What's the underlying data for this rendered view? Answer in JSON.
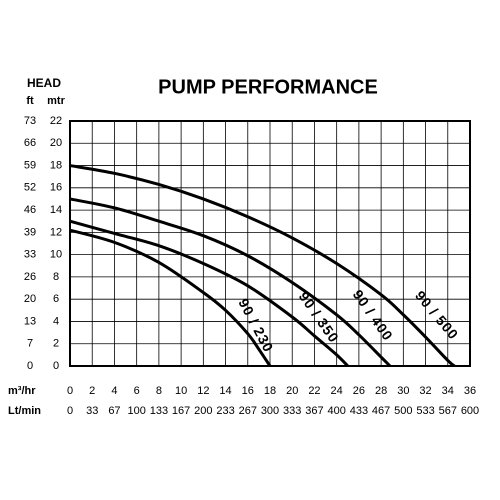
{
  "chart_data": {
    "type": "line",
    "title": "PUMP PERFORMANCE",
    "y_title": "HEAD",
    "y_unit": "mtr",
    "y2_unit": "ft",
    "x_unit": "m³/hr",
    "x2_unit": "Lt/min",
    "xlim": [
      0,
      36
    ],
    "xticks": [
      0,
      2,
      4,
      6,
      8,
      10,
      12,
      14,
      16,
      18,
      20,
      22,
      24,
      26,
      28,
      30,
      32,
      34,
      36
    ],
    "x2ticks": [
      0,
      {
        "value": 2,
        "label": "33"
      },
      {
        "value": 4,
        "label": "67"
      },
      {
        "value": 6,
        "label": "100"
      },
      {
        "value": 8,
        "label": "133"
      },
      {
        "value": 10,
        "label": "167"
      },
      {
        "value": 12,
        "label": "200"
      },
      {
        "value": 14,
        "label": "233"
      },
      {
        "value": 16,
        "label": "267"
      },
      {
        "value": 18,
        "label": "300"
      },
      {
        "value": 20,
        "label": "333"
      },
      {
        "value": 22,
        "label": "367"
      },
      {
        "value": 24,
        "label": "400"
      },
      {
        "value": 26,
        "label": "433"
      },
      {
        "value": 28,
        "label": "467"
      },
      {
        "value": 30,
        "label": "500"
      },
      {
        "value": 32,
        "label": "533"
      },
      {
        "value": 34,
        "label": "567"
      },
      {
        "value": 36,
        "label": "600"
      }
    ],
    "ylim": [
      0,
      22
    ],
    "yticks": [
      0,
      2,
      4,
      6,
      8,
      10,
      12,
      14,
      16,
      18,
      20,
      22
    ],
    "y2ticks": [
      0,
      {
        "value": 2,
        "label": "7"
      },
      {
        "value": 4,
        "label": "13"
      },
      {
        "value": 6,
        "label": "20"
      },
      {
        "value": 8,
        "label": "26"
      },
      {
        "value": 10,
        "label": "33"
      },
      {
        "value": 12,
        "label": "39"
      },
      {
        "value": 14,
        "label": "46"
      },
      {
        "value": 16,
        "label": "52"
      },
      {
        "value": 18,
        "label": "59"
      },
      {
        "value": 20,
        "label": "66"
      },
      {
        "value": 22,
        "label": "73"
      }
    ],
    "grid": true,
    "series": [
      {
        "name": "90 / 230",
        "color": "#000000",
        "x": [
          0,
          4,
          8,
          12,
          14,
          16,
          17,
          18
        ],
        "values": [
          12.2,
          11.1,
          9.3,
          6.6,
          5.0,
          2.9,
          1.5,
          0
        ]
      },
      {
        "name": "90 / 350",
        "color": "#000000",
        "x": [
          0,
          4,
          8,
          12,
          16,
          20,
          22,
          24,
          25
        ],
        "values": [
          13.0,
          11.9,
          10.8,
          9.2,
          7.2,
          4.4,
          2.7,
          1.0,
          0
        ]
      },
      {
        "name": "90 / 400",
        "color": "#000000",
        "x": [
          0,
          4,
          8,
          12,
          16,
          20,
          24,
          26,
          28,
          28.8
        ],
        "values": [
          15.0,
          14.2,
          13.0,
          11.7,
          9.9,
          7.5,
          4.6,
          2.8,
          0.8,
          0
        ]
      },
      {
        "name": "90 / 500",
        "color": "#000000",
        "x": [
          0,
          4,
          8,
          12,
          16,
          20,
          24,
          28,
          30,
          32,
          34,
          34.6
        ],
        "values": [
          18.0,
          17.3,
          16.3,
          15.0,
          13.4,
          11.5,
          9.2,
          6.4,
          4.6,
          2.6,
          0.5,
          0
        ]
      }
    ]
  }
}
